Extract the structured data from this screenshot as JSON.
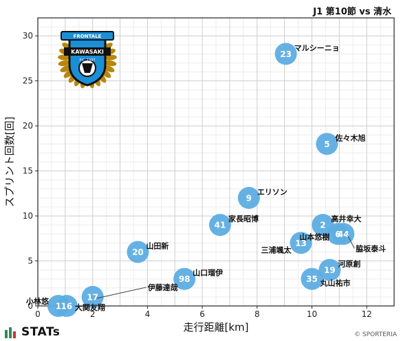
{
  "header": {
    "title": "J1 第10節 vs 清水"
  },
  "brand": {
    "name": "STATs"
  },
  "copyright": "© SPORTERIA",
  "logo": {
    "top_text": "FRONTALE",
    "main_text": "KAWASAKI",
    "sub_text": "F.C. 1997",
    "colors": {
      "blue": "#1a8fd6",
      "black": "#111111",
      "gold": "#b8860b"
    }
  },
  "chart_data": {
    "type": "scatter",
    "xlabel": "走行距離[km]",
    "ylabel": "スプリント回数[回]",
    "xlim": [
      0,
      13
    ],
    "ylim": [
      0,
      32
    ],
    "xticks": [
      0,
      2,
      4,
      6,
      8,
      10,
      12
    ],
    "yticks": [
      0,
      5,
      10,
      15,
      20,
      25,
      30
    ],
    "grid": true,
    "marker_color": "#5dade2",
    "points": [
      {
        "number": "23",
        "name": "マルシーニョ",
        "x": 9.05,
        "y": 28
      },
      {
        "number": "5",
        "name": "佐々木旭",
        "x": 10.55,
        "y": 18
      },
      {
        "number": "9",
        "name": "エリソン",
        "x": 7.7,
        "y": 12
      },
      {
        "number": "41",
        "name": "家長昭博",
        "x": 6.65,
        "y": 9
      },
      {
        "number": "2",
        "name": "高井幸大",
        "x": 10.4,
        "y": 9
      },
      {
        "number": "6",
        "name": "山本悠樹",
        "x": 10.95,
        "y": 8
      },
      {
        "number": "44",
        "name": "脇坂泰斗",
        "x": 11.15,
        "y": 8
      },
      {
        "number": "13",
        "name": "三浦颯太",
        "x": 9.6,
        "y": 7
      },
      {
        "number": "20",
        "name": "山田新",
        "x": 3.65,
        "y": 6
      },
      {
        "number": "19",
        "name": "河原創",
        "x": 10.65,
        "y": 4
      },
      {
        "number": "35",
        "name": "丸山祐市",
        "x": 10.0,
        "y": 3
      },
      {
        "number": "98",
        "name": "山口瑠伊",
        "x": 5.35,
        "y": 3
      },
      {
        "number": "17",
        "name": "伊藤達哉",
        "x": 2.0,
        "y": 1
      },
      {
        "number": "16",
        "name": "大関友翔",
        "x": 1.05,
        "y": 0
      },
      {
        "number": "1",
        "name": "小林悠",
        "x": 0.75,
        "y": 0
      }
    ]
  }
}
